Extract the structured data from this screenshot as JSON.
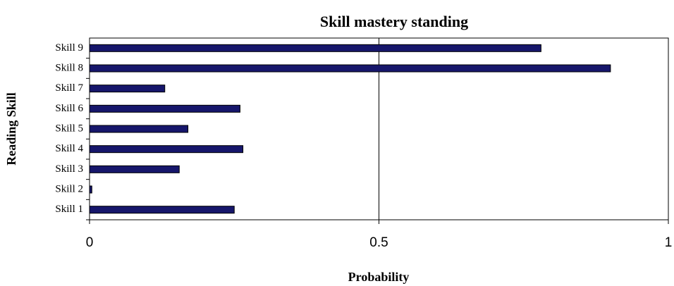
{
  "chart_data": {
    "type": "bar",
    "orientation": "horizontal",
    "title": "Skill mastery standing",
    "x_label": "Probability",
    "y_label": "Reading Skill",
    "categories": [
      "Skill 1",
      "Skill 2",
      "Skill 3",
      "Skill 4",
      "Skill 5",
      "Skill 6",
      "Skill 7",
      "Skill 8",
      "Skill 9"
    ],
    "values": [
      0.25,
      0.004,
      0.155,
      0.265,
      0.17,
      0.26,
      0.13,
      0.9,
      0.78
    ],
    "color": "#16166b",
    "xlim": [
      0,
      1
    ],
    "xticks": [
      0,
      0.5,
      1
    ],
    "grid": true
  }
}
